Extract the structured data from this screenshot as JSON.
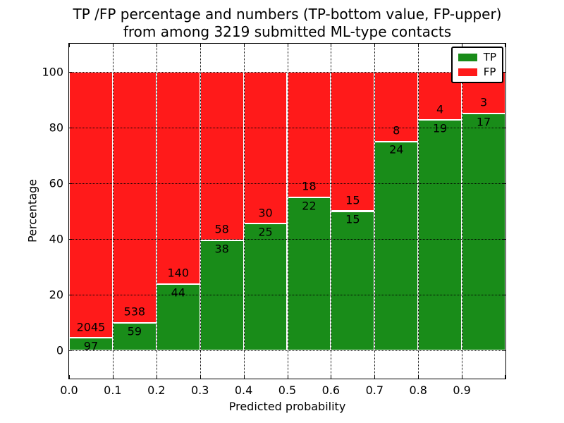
{
  "title": {
    "line1": "TP /FP percentage and numbers (TP-bottom value, FP-upper)",
    "line2": "from among 3219 submitted ML-type contacts"
  },
  "chart_data": {
    "type": "bar",
    "stacked": true,
    "normalized_to_percent": true,
    "total_contacts": 3219,
    "bins": [
      "0.0-0.1",
      "0.1-0.2",
      "0.2-0.3",
      "0.3-0.4",
      "0.4-0.5",
      "0.5-0.6",
      "0.6-0.7",
      "0.7-0.8",
      "0.8-0.9",
      "0.9-1.0"
    ],
    "series": [
      {
        "name": "TP",
        "color": "#198c19",
        "counts": [
          97,
          59,
          44,
          38,
          25,
          22,
          15,
          24,
          19,
          17
        ]
      },
      {
        "name": "FP",
        "color": "#ff1a1a",
        "counts": [
          2045,
          538,
          140,
          58,
          30,
          18,
          15,
          8,
          4,
          3
        ]
      }
    ],
    "tp_percent_heights": [
      4.5,
      9.9,
      23.9,
      39.6,
      45.5,
      55.0,
      50.0,
      75.0,
      82.6,
      85.0
    ],
    "xlabel": "Predicted probability",
    "ylabel": "Percentage",
    "x_tick_labels": [
      "0.0",
      "0.1",
      "0.2",
      "0.3",
      "0.4",
      "0.5",
      "0.6",
      "0.7",
      "0.8",
      "0.9"
    ],
    "y_tick_values": [
      0,
      20,
      40,
      60,
      80,
      100
    ],
    "y_tick_labels": [
      "0",
      "20",
      "40",
      "60",
      "80",
      "100"
    ],
    "xlim": [
      0.0,
      1.0
    ],
    "ylim": [
      -10,
      110
    ],
    "grid": "dotted",
    "legend": {
      "position": "upper right",
      "entries": [
        {
          "label": "TP",
          "color": "#198c19"
        },
        {
          "label": "FP",
          "color": "#ff1a1a"
        }
      ]
    }
  }
}
